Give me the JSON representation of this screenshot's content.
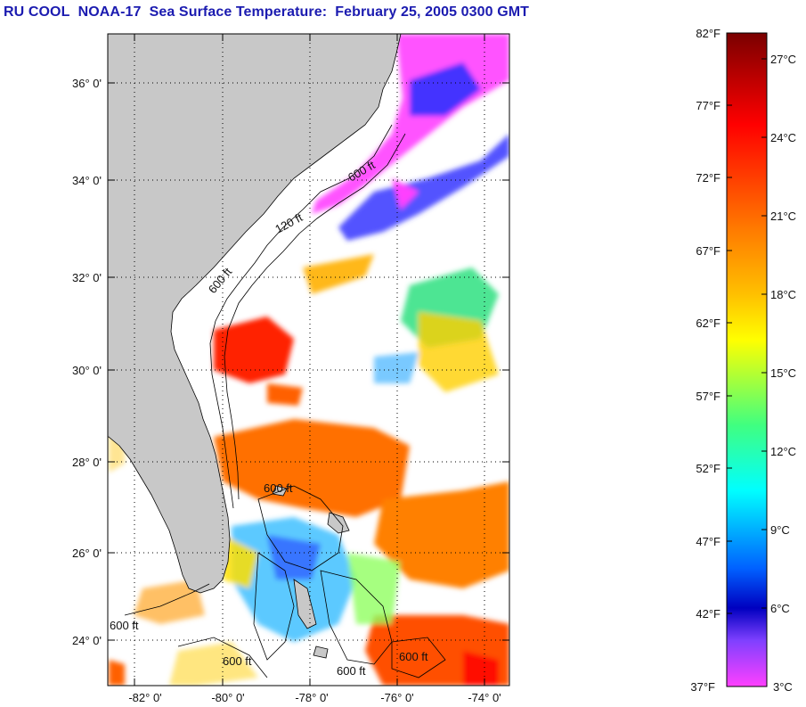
{
  "title": {
    "program": "RU COOL",
    "satellite": "NOAA-17",
    "product": "Sea Surface Temperature:",
    "datetime": "February 25, 2005 0300 GMT"
  },
  "map": {
    "lat_ticks": [
      "36° 0'",
      "34° 0'",
      "32° 0'",
      "30° 0'",
      "28° 0'",
      "26° 0'",
      "24° 0'"
    ],
    "lon_ticks": [
      "-82° 0'",
      "-80° 0'",
      "-78° 0'",
      "-76° 0'",
      "-74° 0'"
    ],
    "contour_labels": [
      "120 ft",
      "600 ft",
      "600 ft",
      "600 ft",
      "600 ft",
      "600 ft",
      "600 ft",
      "600 ft"
    ],
    "colors": {
      "land": "#c8c8c8",
      "water_nodata": "#ffffff",
      "grid": "#000000"
    }
  },
  "colorbar": {
    "fahrenheit": [
      "82°F",
      "77°F",
      "72°F",
      "67°F",
      "62°F",
      "57°F",
      "52°F",
      "47°F",
      "42°F",
      "37°F"
    ],
    "celsius": [
      "27°C",
      "24°C",
      "21°C",
      "18°C",
      "15°C",
      "12°C",
      "9°C",
      "6°C",
      "3°C"
    ],
    "gradient_stops": [
      "#7a0000",
      "#ff0000",
      "#ff8000",
      "#ffff00",
      "#00ff80",
      "#00ffff",
      "#0040ff",
      "#0000a0",
      "#8040ff",
      "#ff40ff"
    ]
  }
}
